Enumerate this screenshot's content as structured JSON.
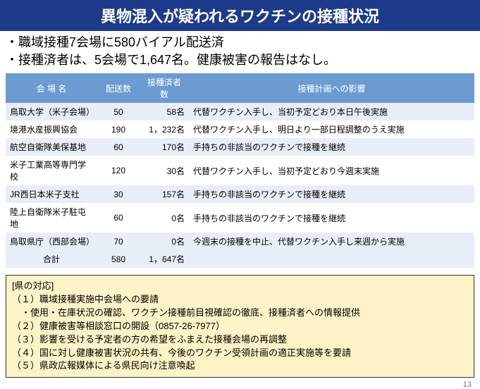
{
  "header": {
    "title": "異物混入が疑われるワクチンの接種状況"
  },
  "bullets": {
    "b1": "・職域接種7会場に580バイアル配送済",
    "b2": "・接種済者は、5会場で1,647名。健康被害の報告はなし。"
  },
  "columns": {
    "venue": "会 場 名",
    "shipped": "配送数",
    "vacc": "接種済者数",
    "impact": "接種計画への影響"
  },
  "rows": [
    {
      "venue": "鳥取大学（米子会場）",
      "shipped": "50",
      "vacc": "58名",
      "impact": "代替ワクチン入手し、当初予定どおり本日午後実施"
    },
    {
      "venue": "境港水産振興協会",
      "shipped": "190",
      "vacc": "1，232名",
      "impact": "代替ワクチン入手し、明日より一部日程調整のうえ実施"
    },
    {
      "venue": "航空自衛隊美保基地",
      "shipped": "60",
      "vacc": "170名",
      "impact": "手持ちの非該当のワクチンで接種を継続"
    },
    {
      "venue": "米子工業高等専門学校",
      "shipped": "120",
      "vacc": "30名",
      "impact": "代替ワクチン入手し、当初予定どおり今週末実施"
    },
    {
      "venue": "JR西日本米子支社",
      "shipped": "30",
      "vacc": "157名",
      "impact": "手持ちの非該当のワクチンで接種を継続"
    },
    {
      "venue": "陸上自衛隊米子駐屯地",
      "shipped": "60",
      "vacc": "0名",
      "impact": "手持ちの非該当のワクチンで接種を継続"
    },
    {
      "venue": "鳥取県庁（西部会場）",
      "shipped": "70",
      "vacc": "0名",
      "impact": "今週末の接種を中止、代替ワクチン入手し来週から実施"
    }
  ],
  "total": {
    "label": "合計",
    "shipped": "580",
    "vacc": "1，647名",
    "impact": ""
  },
  "response": {
    "title": "[県の対応]",
    "l1": "（１）職域接種実施中会場への要請",
    "l1a": "　・使用・在庫状況の確認、ワクチン接種前目視確認の徹底、接種済者への情報提供",
    "l2": "（２）健康被害等相談窓口の開設（0857-26-7977）",
    "l3": "（３）影響を受ける予定者の方の希望をふまえた接種会場の再調整",
    "l4": "（４）国に対し健康被害状況の共有、今後のワクチン受領計画の適正実施等を要請",
    "l5": "（５）県政広報媒体による県民向け注意喚起"
  },
  "page": "13",
  "colors": {
    "header_bg": "#1e3a8a",
    "th_bg": "#6b9bd1",
    "row_odd": "#e8eef7",
    "box_bg": "#fdf3c7"
  }
}
